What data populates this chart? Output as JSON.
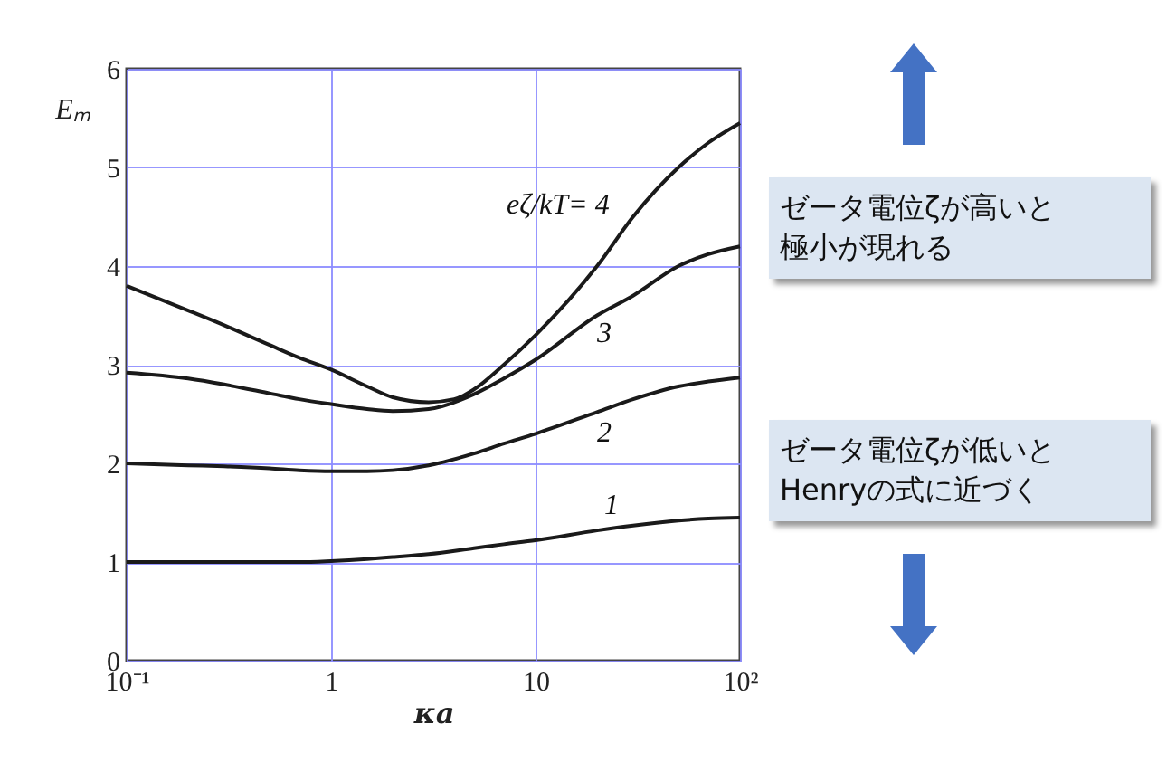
{
  "chart_data": {
    "type": "line",
    "xlabel": "κa",
    "ylabel": "Eₘ",
    "log": "x",
    "grid": true,
    "legend": false,
    "marker": "none",
    "line_style": "solid",
    "xlim": [
      0.1,
      100
    ],
    "ylim": [
      0,
      6
    ],
    "xticks": [
      {
        "value": 0.1,
        "label": "10⁻¹"
      },
      1,
      10,
      {
        "value": 100,
        "label": "10²"
      }
    ],
    "yticks": [
      0,
      1,
      2,
      3,
      4,
      5,
      6
    ],
    "series": [
      {
        "color": "#1a1a1a",
        "x": [
          0.1,
          0.2,
          0.3,
          0.5,
          0.7,
          1,
          1.5,
          2,
          3,
          5,
          7,
          10,
          20,
          30,
          50,
          70,
          100
        ],
        "values": [
          1.0,
          1.0,
          1.0,
          1.0,
          1.0,
          1.01,
          1.03,
          1.05,
          1.08,
          1.14,
          1.18,
          1.22,
          1.32,
          1.37,
          1.42,
          1.44,
          1.45
        ]
      },
      {
        "color": "#1a1a1a",
        "x": [
          0.1,
          0.2,
          0.3,
          0.5,
          0.7,
          1,
          1.5,
          2,
          3,
          5,
          7,
          10,
          20,
          30,
          50,
          70,
          100
        ],
        "values": [
          2.0,
          1.98,
          1.97,
          1.95,
          1.93,
          1.92,
          1.92,
          1.93,
          1.98,
          2.1,
          2.2,
          2.3,
          2.52,
          2.65,
          2.78,
          2.83,
          2.87
        ]
      },
      {
        "color": "#1a1a1a",
        "x": [
          0.1,
          0.2,
          0.3,
          0.5,
          0.7,
          1,
          1.5,
          2,
          3,
          5,
          7,
          10,
          20,
          30,
          50,
          70,
          100
        ],
        "values": [
          2.92,
          2.86,
          2.8,
          2.71,
          2.65,
          2.6,
          2.55,
          2.53,
          2.55,
          2.7,
          2.86,
          3.05,
          3.5,
          3.7,
          4.0,
          4.12,
          4.2
        ]
      },
      {
        "color": "#1a1a1a",
        "x": [
          0.1,
          0.2,
          0.3,
          0.5,
          0.7,
          1,
          1.5,
          2,
          3,
          4,
          5,
          7,
          10,
          20,
          30,
          50,
          70,
          100
        ],
        "values": [
          3.8,
          3.55,
          3.4,
          3.2,
          3.07,
          2.95,
          2.78,
          2.67,
          2.62,
          2.65,
          2.75,
          3.0,
          3.3,
          4.0,
          4.5,
          5.0,
          5.25,
          5.45
        ]
      }
    ],
    "annotations": [
      "1",
      "2",
      "3",
      "eζ/kT= 4",
      "ゼータ電位ζが高いと極小が現れる",
      "ゼータ電位ζが低いとHenryの式に近づく"
    ]
  }
}
